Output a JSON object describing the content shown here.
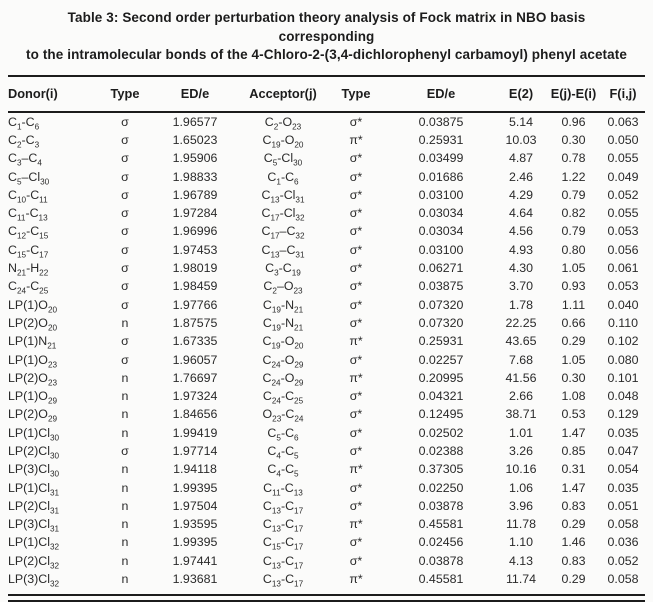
{
  "title": {
    "line1": "Table 3: Second order perturbation theory analysis of Fock matrix in NBO basis corresponding",
    "line2": "to the intramolecular bonds of the 4-Chloro-2-(3,4-dichlorophenyl carbamoyl) phenyl acetate"
  },
  "colors": {
    "background": "#fbfbfa",
    "text": "#2a2a2a",
    "heading": "#1c1c1c",
    "rule": "#1c1c1c"
  },
  "table": {
    "columns": [
      "Donor(i)",
      "Type",
      "ED/e",
      "Acceptor(j)",
      "Type",
      "ED/e",
      "E(2)",
      "E(j)-E(i)",
      "F(i,j)"
    ],
    "rows": [
      {
        "donor": "C_1-C_6",
        "type1": "σ",
        "ed1": "1.96577",
        "acceptor": "C_2-O_23",
        "type2": "σ*",
        "ed2": "0.03875",
        "e2": "5.14",
        "ejei": "0.96",
        "fij": "0.063"
      },
      {
        "donor": "C_2-C_3",
        "type1": "σ",
        "ed1": "1.65023",
        "acceptor": "C_19-O_20",
        "type2": "π*",
        "ed2": "0.25931",
        "e2": "10.03",
        "ejei": "0.30",
        "fij": "0.050"
      },
      {
        "donor": "C_3–C_4",
        "type1": "σ",
        "ed1": "1.95906",
        "acceptor": "C_5-Cl_30",
        "type2": "σ*",
        "ed2": "0.03499",
        "e2": "4.87",
        "ejei": "0.78",
        "fij": "0.055"
      },
      {
        "donor": "C_5–Cl_30",
        "type1": "σ",
        "ed1": "1.98833",
        "acceptor": "C_1-C_6",
        "type2": "σ*",
        "ed2": "0.01686",
        "e2": "2.46",
        "ejei": "1.22",
        "fij": "0.049"
      },
      {
        "donor": "C_10-C_11",
        "type1": "σ",
        "ed1": "1.96789",
        "acceptor": "C_13-Cl_31",
        "type2": "σ*",
        "ed2": "0.03100",
        "e2": "4.29",
        "ejei": "0.79",
        "fij": "0.052"
      },
      {
        "donor": "C_11-C_13",
        "type1": "σ",
        "ed1": "1.97284",
        "acceptor": "C_17-Cl_32",
        "type2": "σ*",
        "ed2": "0.03034",
        "e2": "4.64",
        "ejei": "0.82",
        "fij": "0.055"
      },
      {
        "donor": "C_12-C_15",
        "type1": "σ",
        "ed1": "1.96996",
        "acceptor": "C_17–C_32",
        "type2": "σ*",
        "ed2": "0.03034",
        "e2": "4.56",
        "ejei": "0.79",
        "fij": "0.053"
      },
      {
        "donor": "C_15-C_17",
        "type1": "σ",
        "ed1": "1.97453",
        "acceptor": "C_13–C_31",
        "type2": "σ*",
        "ed2": "0.03100",
        "e2": "4.93",
        "ejei": "0.80",
        "fij": "0.056"
      },
      {
        "donor": "N_21-H_22",
        "type1": "σ",
        "ed1": "1.98019",
        "acceptor": "C_3-C_19",
        "type2": "σ*",
        "ed2": "0.06271",
        "e2": "4.30",
        "ejei": "1.05",
        "fij": "0.061"
      },
      {
        "donor": "C_24-C_25",
        "type1": "σ",
        "ed1": "1.98459",
        "acceptor": "C_2–O_23",
        "type2": "σ*",
        "ed2": "0.03875",
        "e2": "3.70",
        "ejei": "0.93",
        "fij": "0.053"
      },
      {
        "donor": "LP(1)O_20",
        "type1": "σ",
        "ed1": "1.97766",
        "acceptor": "C_19-N_21",
        "type2": "σ*",
        "ed2": "0.07320",
        "e2": "1.78",
        "ejei": "1.11",
        "fij": "0.040"
      },
      {
        "donor": "LP(2)O_20",
        "type1": "n",
        "ed1": "1.87575",
        "acceptor": "C_19-N_21",
        "type2": "σ*",
        "ed2": "0.07320",
        "e2": "22.25",
        "ejei": "0.66",
        "fij": "0.110"
      },
      {
        "donor": "LP(1)N_21",
        "type1": "σ",
        "ed1": "1.67335",
        "acceptor": "C_19-O_20",
        "type2": "π*",
        "ed2": "0.25931",
        "e2": "43.65",
        "ejei": "0.29",
        "fij": "0.102"
      },
      {
        "donor": "LP(1)O_23",
        "type1": "σ",
        "ed1": "1.96057",
        "acceptor": "C_24-O_29",
        "type2": "σ*",
        "ed2": "0.02257",
        "e2": "7.68",
        "ejei": "1.05",
        "fij": "0.080"
      },
      {
        "donor": "LP(2)O_23",
        "type1": "n",
        "ed1": "1.76697",
        "acceptor": "C_24-O_29",
        "type2": "π*",
        "ed2": "0.20995",
        "e2": "41.56",
        "ejei": "0.30",
        "fij": "0.101"
      },
      {
        "donor": "LP(1)O_29",
        "type1": "n",
        "ed1": "1.97324",
        "acceptor": "C_24-C_25",
        "type2": "σ*",
        "ed2": "0.04321",
        "e2": "2.66",
        "ejei": "1.08",
        "fij": "0.048"
      },
      {
        "donor": "LP(2)O_29",
        "type1": "n",
        "ed1": "1.84656",
        "acceptor": "O_23-C_24",
        "type2": "σ*",
        "ed2": "0.12495",
        "e2": "38.71",
        "ejei": "0.53",
        "fij": "0.129"
      },
      {
        "donor": "LP(1)Cl_30",
        "type1": "n",
        "ed1": "1.99419",
        "acceptor": "C_5-C_6",
        "type2": "σ*",
        "ed2": "0.02502",
        "e2": "1.01",
        "ejei": "1.47",
        "fij": "0.035"
      },
      {
        "donor": "LP(2)Cl_30",
        "type1": "σ",
        "ed1": "1.97714",
        "acceptor": "C_4-C_5",
        "type2": "σ*",
        "ed2": "0.02388",
        "e2": "3.26",
        "ejei": "0.85",
        "fij": "0.047"
      },
      {
        "donor": "LP(3)Cl_30",
        "type1": "n",
        "ed1": "1.94118",
        "acceptor": "C_4-C_5",
        "type2": "π*",
        "ed2": "0.37305",
        "e2": "10.16",
        "ejei": "0.31",
        "fij": "0.054"
      },
      {
        "donor": "LP(1)Cl_31",
        "type1": "n",
        "ed1": "1.99395",
        "acceptor": "C_11-C_13",
        "type2": "σ*",
        "ed2": "0.02250",
        "e2": "1.06",
        "ejei": "1.47",
        "fij": "0.035"
      },
      {
        "donor": "LP(2)Cl_31",
        "type1": "n",
        "ed1": "1.97504",
        "acceptor": "C_13-C_17",
        "type2": "σ*",
        "ed2": "0.03878",
        "e2": "3.96",
        "ejei": "0.83",
        "fij": "0.051"
      },
      {
        "donor": "LP(3)Cl_31",
        "type1": "n",
        "ed1": "1.93595",
        "acceptor": "C_13-C_17",
        "type2": "π*",
        "ed2": "0.45581",
        "e2": "11.78",
        "ejei": "0.29",
        "fij": "0.058"
      },
      {
        "donor": "LP(1)Cl_32",
        "type1": "n",
        "ed1": "1.99395",
        "acceptor": "C_15-C_17",
        "type2": "σ*",
        "ed2": "0.02456",
        "e2": "1.10",
        "ejei": "1.46",
        "fij": "0.036"
      },
      {
        "donor": "LP(2)Cl_32",
        "type1": "n",
        "ed1": "1.97441",
        "acceptor": "C_13-C_17",
        "type2": "σ*",
        "ed2": "0.03878",
        "e2": "4.13",
        "ejei": "0.83",
        "fij": "0.052"
      },
      {
        "donor": "LP(3)Cl_32",
        "type1": "n",
        "ed1": "1.93681",
        "acceptor": "C_13-C_17",
        "type2": "π*",
        "ed2": "0.45581",
        "e2": "11.74",
        "ejei": "0.29",
        "fij": "0.058"
      }
    ]
  }
}
